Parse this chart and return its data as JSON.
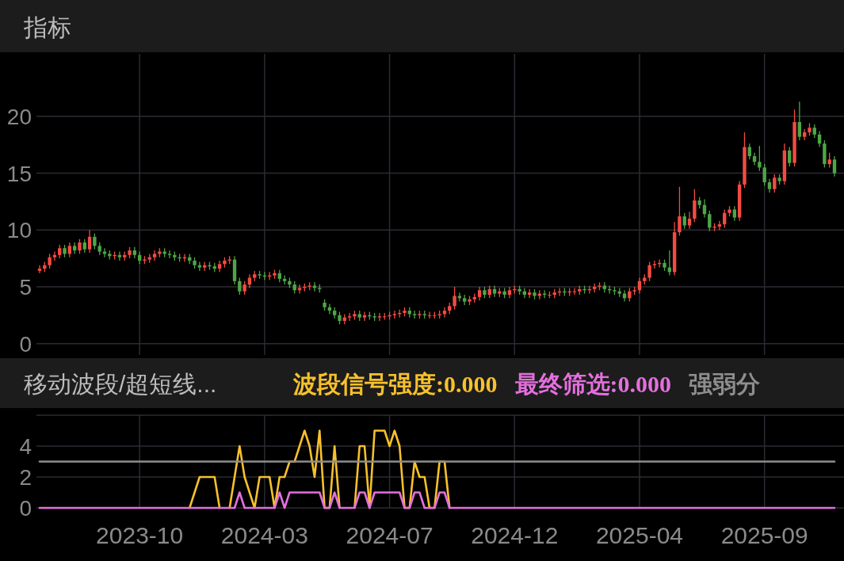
{
  "chart_data": [
    {
      "type": "candlestick",
      "title": "指标",
      "categories": [
        null,
        null,
        null,
        null,
        null,
        null,
        null,
        null,
        null,
        null,
        null,
        null,
        null,
        null,
        null,
        null,
        null,
        null,
        null,
        null,
        "2023-10",
        null,
        null,
        null,
        null,
        null,
        null,
        null,
        null,
        null,
        null,
        null,
        null,
        null,
        null,
        null,
        null,
        null,
        null,
        null,
        null,
        null,
        null,
        null,
        null,
        "2024-03",
        null,
        null,
        null,
        null,
        null,
        null,
        null,
        null,
        null,
        null,
        null,
        null,
        null,
        null,
        null,
        null,
        null,
        null,
        null,
        null,
        null,
        null,
        null,
        null,
        "2024-07",
        null,
        null,
        null,
        null,
        null,
        null,
        null,
        null,
        null,
        null,
        null,
        null,
        null,
        null,
        null,
        null,
        null,
        null,
        null,
        null,
        null,
        null,
        null,
        null,
        "2024-12",
        null,
        null,
        null,
        null,
        null,
        null,
        null,
        null,
        null,
        null,
        null,
        null,
        null,
        null,
        null,
        null,
        null,
        null,
        null,
        null,
        null,
        null,
        null,
        null,
        "2025-04",
        null,
        null,
        null,
        null,
        null,
        null,
        null,
        null,
        null,
        null,
        null,
        null,
        null,
        null,
        null,
        null,
        null,
        null,
        null,
        null,
        null,
        null,
        null,
        null,
        "2025-09",
        null,
        null,
        null,
        null,
        null,
        null,
        null,
        null,
        null,
        null,
        null,
        null,
        null,
        null
      ],
      "ohlc": [
        [
          6.4,
          6.9,
          6.2,
          6.6
        ],
        [
          6.6,
          7.2,
          6.3,
          6.9
        ],
        [
          6.9,
          7.9,
          6.6,
          7.6
        ],
        [
          7.6,
          8.1,
          7.3,
          7.8
        ],
        [
          7.8,
          8.7,
          7.5,
          8.4
        ],
        [
          8.4,
          8.7,
          7.6,
          7.9
        ],
        [
          7.9,
          8.9,
          7.6,
          8.6
        ],
        [
          8.6,
          8.9,
          7.9,
          8.2
        ],
        [
          8.2,
          9.2,
          7.9,
          8.9
        ],
        [
          8.9,
          9.2,
          8.0,
          8.3
        ],
        [
          8.3,
          10.0,
          8.0,
          9.4
        ],
        [
          9.4,
          9.7,
          8.3,
          8.6
        ],
        [
          8.6,
          8.9,
          7.8,
          8.1
        ],
        [
          8.1,
          8.4,
          7.6,
          7.9
        ],
        [
          7.9,
          8.2,
          7.4,
          7.7
        ],
        [
          7.7,
          8.1,
          7.4,
          7.8
        ],
        [
          7.8,
          8.1,
          7.3,
          7.6
        ],
        [
          7.6,
          8.1,
          7.3,
          7.8
        ],
        [
          7.8,
          8.5,
          7.5,
          8.2
        ],
        [
          8.2,
          8.5,
          7.5,
          7.8
        ],
        [
          7.8,
          8.1,
          7.0,
          7.3
        ],
        [
          7.3,
          7.7,
          7.0,
          7.4
        ],
        [
          7.4,
          7.9,
          7.1,
          7.6
        ],
        [
          7.6,
          8.2,
          7.3,
          7.9
        ],
        [
          7.9,
          8.4,
          7.6,
          8.1
        ],
        [
          8.1,
          8.4,
          7.6,
          7.9
        ],
        [
          7.9,
          8.2,
          7.5,
          7.8
        ],
        [
          7.8,
          8.1,
          7.3,
          7.6
        ],
        [
          7.6,
          7.9,
          7.2,
          7.5
        ],
        [
          7.5,
          7.9,
          7.2,
          7.6
        ],
        [
          7.6,
          7.9,
          7.0,
          7.3
        ],
        [
          7.3,
          7.6,
          6.6,
          6.9
        ],
        [
          6.9,
          7.2,
          6.4,
          6.7
        ],
        [
          6.7,
          7.2,
          6.4,
          6.9
        ],
        [
          6.9,
          7.2,
          6.5,
          6.8
        ],
        [
          6.8,
          7.1,
          6.3,
          6.6
        ],
        [
          6.6,
          7.3,
          6.3,
          7.0
        ],
        [
          7.0,
          7.6,
          6.7,
          7.3
        ],
        [
          7.3,
          7.7,
          7.0,
          7.4
        ],
        [
          7.4,
          7.7,
          5.2,
          5.5
        ],
        [
          5.5,
          5.8,
          4.3,
          4.6
        ],
        [
          4.6,
          5.5,
          4.3,
          5.2
        ],
        [
          5.2,
          6.1,
          4.9,
          5.8
        ],
        [
          5.8,
          6.4,
          5.5,
          6.1
        ],
        [
          6.1,
          6.4,
          5.7,
          6.0
        ],
        [
          6.0,
          6.3,
          5.6,
          5.9
        ],
        [
          5.9,
          6.3,
          5.6,
          6.0
        ],
        [
          6.0,
          6.5,
          5.7,
          6.2
        ],
        [
          6.2,
          6.5,
          5.4,
          5.7
        ],
        [
          5.7,
          6.0,
          5.2,
          5.5
        ],
        [
          5.5,
          5.8,
          4.9,
          5.2
        ],
        [
          5.2,
          5.5,
          4.4,
          4.7
        ],
        [
          4.7,
          5.2,
          4.4,
          4.9
        ],
        [
          4.9,
          5.3,
          4.6,
          5.0
        ],
        [
          5.0,
          5.4,
          4.7,
          5.1
        ],
        [
          5.1,
          5.4,
          4.6,
          4.9
        ],
        [
          4.9,
          5.2,
          4.5,
          4.8
        ],
        [
          3.6,
          3.9,
          2.9,
          3.2
        ],
        [
          3.2,
          3.5,
          2.6,
          2.9
        ],
        [
          2.9,
          3.2,
          2.2,
          2.5
        ],
        [
          2.5,
          2.8,
          1.7,
          2.0
        ],
        [
          2.0,
          2.6,
          1.7,
          2.3
        ],
        [
          2.3,
          2.7,
          2.0,
          2.4
        ],
        [
          2.4,
          2.9,
          2.1,
          2.6
        ],
        [
          2.6,
          2.9,
          2.0,
          2.3
        ],
        [
          2.3,
          2.8,
          2.0,
          2.5
        ],
        [
          2.5,
          2.8,
          2.1,
          2.4
        ],
        [
          2.4,
          2.7,
          2.0,
          2.3
        ],
        [
          2.3,
          2.7,
          2.0,
          2.4
        ],
        [
          2.4,
          2.7,
          2.1,
          2.4
        ],
        [
          2.4,
          2.8,
          2.1,
          2.5
        ],
        [
          2.5,
          2.9,
          2.2,
          2.6
        ],
        [
          2.6,
          3.0,
          2.3,
          2.7
        ],
        [
          2.7,
          3.2,
          2.4,
          2.9
        ],
        [
          2.9,
          3.2,
          2.3,
          2.6
        ],
        [
          2.6,
          2.9,
          2.2,
          2.5
        ],
        [
          2.5,
          2.9,
          2.2,
          2.6
        ],
        [
          2.6,
          2.9,
          2.2,
          2.5
        ],
        [
          2.5,
          2.8,
          2.2,
          2.5
        ],
        [
          2.5,
          2.8,
          2.2,
          2.5
        ],
        [
          2.5,
          2.9,
          2.2,
          2.6
        ],
        [
          2.6,
          3.2,
          2.3,
          2.9
        ],
        [
          2.9,
          3.6,
          2.6,
          3.3
        ],
        [
          3.3,
          5.0,
          3.0,
          4.2
        ],
        [
          4.2,
          4.5,
          3.7,
          4.0
        ],
        [
          4.0,
          4.3,
          3.4,
          3.7
        ],
        [
          3.7,
          4.2,
          3.4,
          3.9
        ],
        [
          3.9,
          4.4,
          3.6,
          4.1
        ],
        [
          4.1,
          5.0,
          3.8,
          4.7
        ],
        [
          4.7,
          5.0,
          4.0,
          4.3
        ],
        [
          4.3,
          5.1,
          4.0,
          4.8
        ],
        [
          4.8,
          5.1,
          4.1,
          4.4
        ],
        [
          4.4,
          4.9,
          4.1,
          4.6
        ],
        [
          4.6,
          4.9,
          4.0,
          4.3
        ],
        [
          4.3,
          5.0,
          4.0,
          4.7
        ],
        [
          4.7,
          5.1,
          4.4,
          4.8
        ],
        [
          4.8,
          5.1,
          4.3,
          4.6
        ],
        [
          4.6,
          4.9,
          4.0,
          4.3
        ],
        [
          4.3,
          4.8,
          4.0,
          4.5
        ],
        [
          4.5,
          4.8,
          3.9,
          4.2
        ],
        [
          4.2,
          4.7,
          3.9,
          4.4
        ],
        [
          4.4,
          4.7,
          4.0,
          4.3
        ],
        [
          4.3,
          4.6,
          4.0,
          4.3
        ],
        [
          4.3,
          4.8,
          4.0,
          4.5
        ],
        [
          4.5,
          4.9,
          4.2,
          4.6
        ],
        [
          4.6,
          4.9,
          4.2,
          4.5
        ],
        [
          4.5,
          4.9,
          4.2,
          4.6
        ],
        [
          4.6,
          4.9,
          4.3,
          4.6
        ],
        [
          4.6,
          5.1,
          4.3,
          4.8
        ],
        [
          4.8,
          5.1,
          4.4,
          4.7
        ],
        [
          4.7,
          5.1,
          4.4,
          4.8
        ],
        [
          4.8,
          5.3,
          4.5,
          5.0
        ],
        [
          5.0,
          5.4,
          4.7,
          5.1
        ],
        [
          5.1,
          5.4,
          4.5,
          4.8
        ],
        [
          4.8,
          5.1,
          4.4,
          4.7
        ],
        [
          4.7,
          5.0,
          4.3,
          4.6
        ],
        [
          4.6,
          4.9,
          4.1,
          4.4
        ],
        [
          4.4,
          4.7,
          3.7,
          4.0
        ],
        [
          4.0,
          4.9,
          3.7,
          4.6
        ],
        [
          4.6,
          5.0,
          4.3,
          4.7
        ],
        [
          4.7,
          5.8,
          4.4,
          5.5
        ],
        [
          5.5,
          6.1,
          5.2,
          5.8
        ],
        [
          5.8,
          7.2,
          5.5,
          6.9
        ],
        [
          6.9,
          7.3,
          6.6,
          7.0
        ],
        [
          7.0,
          7.4,
          6.7,
          7.1
        ],
        [
          7.1,
          7.4,
          6.4,
          6.7
        ],
        [
          6.7,
          8.2,
          6.0,
          6.3
        ],
        [
          6.3,
          10.7,
          6.0,
          9.8
        ],
        [
          9.8,
          13.8,
          9.5,
          11.2
        ],
        [
          11.2,
          11.5,
          10.1,
          10.4
        ],
        [
          10.4,
          11.6,
          10.1,
          11.0
        ],
        [
          11.0,
          13.6,
          10.7,
          12.6
        ],
        [
          12.6,
          12.9,
          11.9,
          12.2
        ],
        [
          12.2,
          12.7,
          11.1,
          11.4
        ],
        [
          11.4,
          11.7,
          9.9,
          10.2
        ],
        [
          10.2,
          10.6,
          9.9,
          10.3
        ],
        [
          10.3,
          10.8,
          10.0,
          10.5
        ],
        [
          10.5,
          11.8,
          10.2,
          11.5
        ],
        [
          11.5,
          12.1,
          11.2,
          11.8
        ],
        [
          11.8,
          12.1,
          10.8,
          11.1
        ],
        [
          11.1,
          14.3,
          10.8,
          14.0
        ],
        [
          14.0,
          18.6,
          13.7,
          17.3
        ],
        [
          17.3,
          17.6,
          16.2,
          16.5
        ],
        [
          16.5,
          16.8,
          15.7,
          16.0
        ],
        [
          16.0,
          17.4,
          15.2,
          15.5
        ],
        [
          15.5,
          15.8,
          13.9,
          14.2
        ],
        [
          14.2,
          14.5,
          13.3,
          13.6
        ],
        [
          13.6,
          14.9,
          13.3,
          14.6
        ],
        [
          14.6,
          14.9,
          14.0,
          14.3
        ],
        [
          14.3,
          17.6,
          14.0,
          17.0
        ],
        [
          17.0,
          17.3,
          15.6,
          15.9
        ],
        [
          15.9,
          20.6,
          15.6,
          19.5
        ],
        [
          19.5,
          21.3,
          17.9,
          18.2
        ],
        [
          18.2,
          18.9,
          17.9,
          18.6
        ],
        [
          18.6,
          19.4,
          18.3,
          19.0
        ],
        [
          19.0,
          19.3,
          18.1,
          18.4
        ],
        [
          18.4,
          18.7,
          17.3,
          17.6
        ],
        [
          17.6,
          17.9,
          15.5,
          15.8
        ],
        [
          15.8,
          16.8,
          15.5,
          16.2
        ],
        [
          16.2,
          16.5,
          14.7,
          15.0
        ]
      ],
      "ylim": [
        -1,
        25.5
      ],
      "yticks": [
        0,
        5,
        10,
        15,
        20
      ],
      "grid": true,
      "tick_labels": "y"
    },
    {
      "type": "line",
      "title": "移动波段/超短线...",
      "categories": [
        null,
        null,
        null,
        null,
        null,
        null,
        null,
        null,
        null,
        null,
        null,
        null,
        null,
        null,
        null,
        null,
        null,
        null,
        null,
        null,
        "2023-10",
        null,
        null,
        null,
        null,
        null,
        null,
        null,
        null,
        null,
        null,
        null,
        null,
        null,
        null,
        null,
        null,
        null,
        null,
        null,
        null,
        null,
        null,
        null,
        null,
        "2024-03",
        null,
        null,
        null,
        null,
        null,
        null,
        null,
        null,
        null,
        null,
        null,
        null,
        null,
        null,
        null,
        null,
        null,
        null,
        null,
        null,
        null,
        null,
        null,
        null,
        "2024-07",
        null,
        null,
        null,
        null,
        null,
        null,
        null,
        null,
        null,
        null,
        null,
        null,
        null,
        null,
        null,
        null,
        null,
        null,
        null,
        null,
        null,
        null,
        null,
        null,
        "2024-12",
        null,
        null,
        null,
        null,
        null,
        null,
        null,
        null,
        null,
        null,
        null,
        null,
        null,
        null,
        null,
        null,
        null,
        null,
        null,
        null,
        null,
        null,
        null,
        null,
        "2025-04",
        null,
        null,
        null,
        null,
        null,
        null,
        null,
        null,
        null,
        null,
        null,
        null,
        null,
        null,
        null,
        null,
        null,
        null,
        null,
        null,
        null,
        null,
        null,
        null,
        "2025-09",
        null,
        null,
        null,
        null,
        null,
        null,
        null,
        null,
        null,
        null,
        null,
        null,
        null,
        null
      ],
      "series": [
        {
          "name": "波段信号强度:0.000",
          "color": "#f7c12b",
          "values": [
            null,
            null,
            null,
            null,
            null,
            null,
            null,
            null,
            null,
            null,
            null,
            null,
            null,
            null,
            null,
            null,
            null,
            null,
            null,
            null,
            null,
            null,
            null,
            null,
            null,
            null,
            null,
            null,
            null,
            null,
            0,
            1,
            2,
            2,
            2,
            2,
            0,
            null,
            0,
            2,
            4,
            2,
            1,
            0,
            2,
            2,
            2,
            0,
            2,
            2,
            3,
            3,
            4,
            5,
            4,
            2,
            5,
            0,
            0,
            4,
            0,
            null,
            null,
            0,
            4,
            4,
            0,
            5,
            5,
            5,
            4,
            5,
            4,
            0,
            0,
            3,
            2,
            2,
            0,
            0,
            3,
            3,
            0,
            null,
            null,
            null,
            null,
            null,
            null,
            null,
            null,
            null,
            null,
            null,
            null,
            null,
            null,
            null,
            null,
            null,
            null,
            null,
            null,
            null,
            null,
            null,
            null,
            null,
            null,
            null,
            null,
            null,
            null,
            null,
            null,
            null,
            null,
            null,
            null,
            null,
            null,
            null,
            null,
            null,
            null,
            null,
            null,
            null,
            null,
            null,
            null,
            null,
            null,
            null,
            null,
            null,
            null,
            null,
            null,
            null,
            null,
            null,
            null,
            null,
            null,
            null,
            null,
            null,
            null,
            null,
            null,
            null,
            null,
            null,
            null,
            null,
            null,
            null,
            null,
            null
          ]
        },
        {
          "name": "最终筛选:0.000",
          "color": "#e46fde",
          "values": [
            0,
            0,
            0,
            0,
            0,
            0,
            0,
            0,
            0,
            0,
            0,
            0,
            0,
            0,
            0,
            0,
            0,
            0,
            0,
            0,
            0,
            0,
            0,
            0,
            0,
            0,
            0,
            0,
            0,
            0,
            0,
            0,
            0,
            0,
            0,
            0,
            0,
            0,
            0,
            0,
            1,
            0,
            0,
            0,
            0,
            0,
            0,
            0,
            1,
            0,
            1,
            1,
            1,
            1,
            1,
            1,
            1,
            0,
            0,
            1,
            0,
            0,
            0,
            0,
            1,
            1,
            0,
            1,
            1,
            1,
            1,
            1,
            1,
            0,
            0,
            1,
            1,
            0,
            0,
            0,
            1,
            1,
            0,
            0,
            0,
            0,
            0,
            0,
            0,
            0,
            0,
            0,
            0,
            0,
            0,
            0,
            0,
            0,
            0,
            0,
            0,
            0,
            0,
            0,
            0,
            0,
            0,
            0,
            0,
            0,
            0,
            0,
            0,
            0,
            0,
            0,
            0,
            0,
            0,
            0,
            0,
            0,
            0,
            0,
            0,
            0,
            0,
            0,
            0,
            0,
            0,
            0,
            0,
            0,
            0,
            0,
            0,
            0,
            0,
            0,
            0,
            0,
            0,
            0,
            0,
            0,
            0,
            0,
            0,
            0,
            0,
            0,
            0,
            0,
            0,
            0,
            0,
            0,
            0,
            0
          ]
        },
        {
          "name": "强弱分",
          "color": "#8e8e8e",
          "values": [
            3,
            3,
            3,
            3,
            3,
            3,
            3,
            3,
            3,
            3,
            3,
            3,
            3,
            3,
            3,
            3,
            3,
            3,
            3,
            3,
            3,
            3,
            3,
            3,
            3,
            3,
            3,
            3,
            3,
            3,
            3,
            3,
            3,
            3,
            3,
            3,
            3,
            3,
            3,
            3,
            3,
            3,
            3,
            3,
            3,
            3,
            3,
            3,
            3,
            3,
            3,
            3,
            3,
            3,
            3,
            3,
            3,
            3,
            3,
            3,
            3,
            3,
            3,
            3,
            3,
            3,
            3,
            3,
            3,
            3,
            3,
            3,
            3,
            3,
            3,
            3,
            3,
            3,
            3,
            3,
            3,
            3,
            3,
            3,
            3,
            3,
            3,
            3,
            3,
            3,
            3,
            3,
            3,
            3,
            3,
            3,
            3,
            3,
            3,
            3,
            3,
            3,
            3,
            3,
            3,
            3,
            3,
            3,
            3,
            3,
            3,
            3,
            3,
            3,
            3,
            3,
            3,
            3,
            3,
            3,
            3,
            3,
            3,
            3,
            3,
            3,
            3,
            3,
            3,
            3,
            3,
            3,
            3,
            3,
            3,
            3,
            3,
            3,
            3,
            3,
            3,
            3,
            3,
            3,
            3,
            3,
            3,
            3,
            3,
            3,
            3,
            3,
            3,
            3,
            3,
            3,
            3,
            3,
            3,
            3
          ]
        }
      ],
      "ylim": [
        0,
        6
      ],
      "yticks": [
        0,
        2,
        4,
        {
          "value": 6,
          "label": null
        }
      ],
      "grid": true,
      "legend": "top"
    }
  ]
}
